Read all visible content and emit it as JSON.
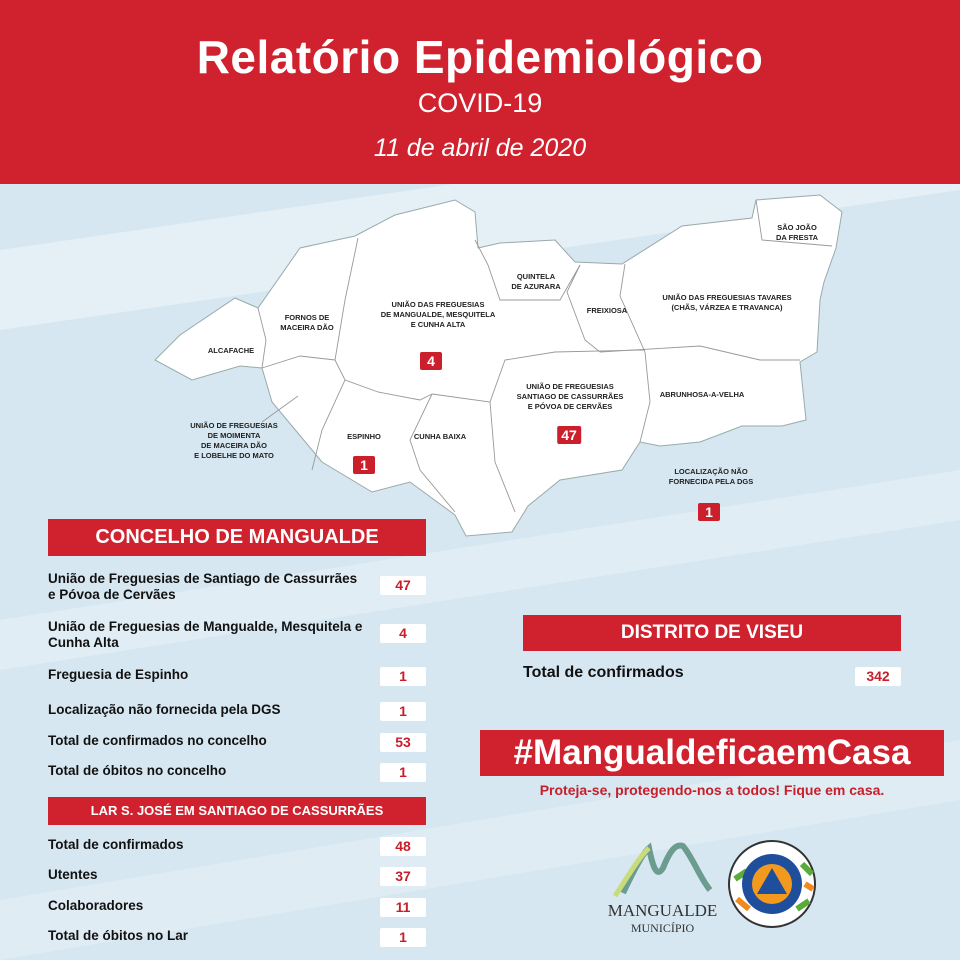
{
  "header": {
    "title": "Relatório Epidemiológico",
    "subtitle": "COVID-19",
    "date": "11 de abril de 2020"
  },
  "map": {
    "regions": [
      {
        "name": "ALCAFACHE"
      },
      {
        "name": "FORNOS DE\nMACEIRA DÃO"
      },
      {
        "name": "UNIÃO DAS FREGUESIAS\nDE MANGUALDE, MESQUITELA\nE CUNHA ALTA",
        "cases": "4"
      },
      {
        "name": "QUINTELA\nDE AZURARA"
      },
      {
        "name": "FREIXIOSA"
      },
      {
        "name": "SÃO JOÃO\nDA FRESTA"
      },
      {
        "name": "UNIÃO DAS FREGUESIAS TAVARES\n(CHÃS, VÁRZEA E TRAVANCA)"
      },
      {
        "name": "UNIÃO DE FREGUESIAS\nSANTIAGO DE CASSURRÃES\nE PÓVOA DE CERVÃES",
        "cases": "47"
      },
      {
        "name": "ABRUNHOSA-A-VELHA"
      },
      {
        "name": "UNIÃO DE FREGUESIAS\nDE MOIMENTA\nDE MACEIRA DÃO\nE LOBELHE DO MATO"
      },
      {
        "name": "ESPINHO",
        "cases": "1"
      },
      {
        "name": "CUNHA BAIXA"
      },
      {
        "name": "LOCALIZAÇÃO NÃO\nFORNECIDA PELA DGS",
        "cases": "1"
      }
    ]
  },
  "concelho": {
    "title": "CONCELHO DE MANGUALDE",
    "rows": [
      {
        "label": "União de Freguesias de Santiago de Cassurrães e Póvoa de Cervães",
        "value": "47"
      },
      {
        "label": "União de Freguesias de Mangualde, Mesquitela e Cunha Alta",
        "value": "4"
      },
      {
        "label": "Freguesia de Espinho",
        "value": "1"
      },
      {
        "label": "Localização não fornecida pela DGS",
        "value": "1"
      },
      {
        "label": "Total de confirmados no concelho",
        "value": "53"
      },
      {
        "label": "Total de óbitos no concelho",
        "value": "1"
      }
    ]
  },
  "lar": {
    "title": "LAR S. JOSÉ EM SANTIAGO DE CASSURRÃES",
    "rows": [
      {
        "label": "Total de confirmados",
        "value": "48"
      },
      {
        "label": "Utentes",
        "value": "37"
      },
      {
        "label": "Colaboradores",
        "value": "11"
      },
      {
        "label": "Total de óbitos no Lar",
        "value": "1"
      }
    ]
  },
  "distrito": {
    "title": "DISTRITO DE VISEU",
    "label": "Total de confirmados",
    "value": "342"
  },
  "campaign": {
    "hashtag": "#MangualdeficaemCasa",
    "slogan": "Proteja-se, protegendo-nos a todos! Fique em casa."
  },
  "logos": {
    "municipio_name": "MANGUALDE",
    "municipio_sub": "MUNICÍPIO",
    "protecao_text": "PROTECÇÃO CIVIL MANGUALDE"
  },
  "colors": {
    "red": "#d0222e",
    "background": "#d6e7f1"
  }
}
